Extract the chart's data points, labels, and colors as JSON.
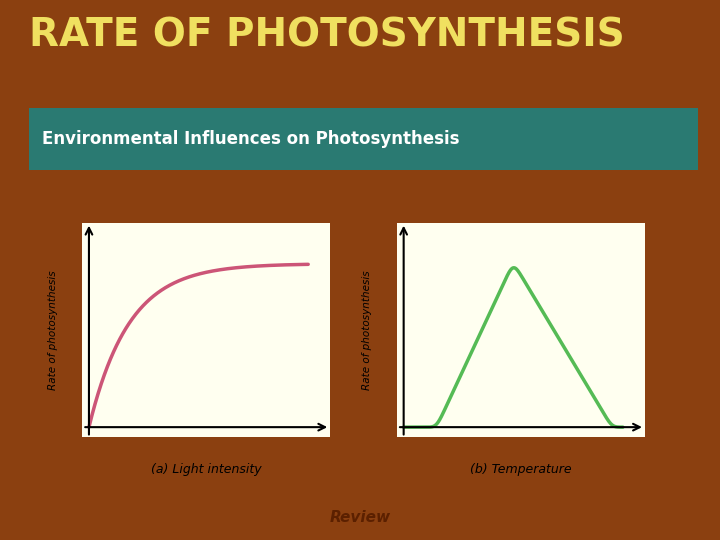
{
  "title": "RATE OF PHOTOSYNTHESIS",
  "title_color": "#F0E060",
  "title_fontsize": 28,
  "background_color": "#8B4010",
  "panel_bg": "#9DBFBF",
  "panel_border_color": "#707070",
  "panel_header_bg": "#2A7A72",
  "panel_header_text": "Environmental Influences on Photosynthesis",
  "panel_header_color": "#FFFFFF",
  "plot_bg": "#FFFFF0",
  "left_curve_color": "#CC5577",
  "right_curve_color": "#55BB55",
  "left_ylabel": "Rate of photosynthesis",
  "right_ylabel": "Rate of photosynthesis",
  "left_xlabel": "(a) Light intensity",
  "right_xlabel": "(b) Temperature",
  "review_btn_color": "#F5A500",
  "review_btn_text": "Review",
  "review_btn_text_color": "#5B2000",
  "curve_linewidth": 2.5
}
